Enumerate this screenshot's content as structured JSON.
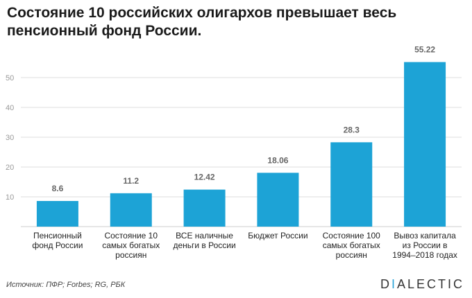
{
  "title": "Состояние 10 российских олигархов превышает весь пенсионный фонд России.",
  "source": "Источник: ПФР; Forbes; RG, РБК",
  "logo": {
    "first_letter": "D",
    "accent_letter": "I",
    "rest": "ALECTIC"
  },
  "colors": {
    "bar": "#1da3d6",
    "grid": "#dddddd",
    "axis_text": "#999999",
    "value_text": "#666666"
  },
  "chart_data": {
    "type": "bar",
    "categories": [
      "Пенсионный фонд России",
      "Состояние 10 самых богатых россиян",
      "ВСЕ наличные деньги в России",
      "Бюджет России",
      "Состояние 100 самых богатых россиян",
      "Вывоз капитала из России в 1994–2018 годах"
    ],
    "values": [
      8.6,
      11.2,
      12.42,
      18.06,
      28.3,
      55.22
    ],
    "value_labels": [
      "8.6",
      "11.2",
      "12.42",
      "18.06",
      "28.3",
      "55.22"
    ],
    "yticks": [
      10,
      20,
      30,
      40,
      50
    ],
    "ylim": [
      0,
      56
    ],
    "grid": true,
    "title": "Состояние 10 российских олигархов превышает весь пенсионный фонд России.",
    "xlabel": "",
    "ylabel": ""
  }
}
